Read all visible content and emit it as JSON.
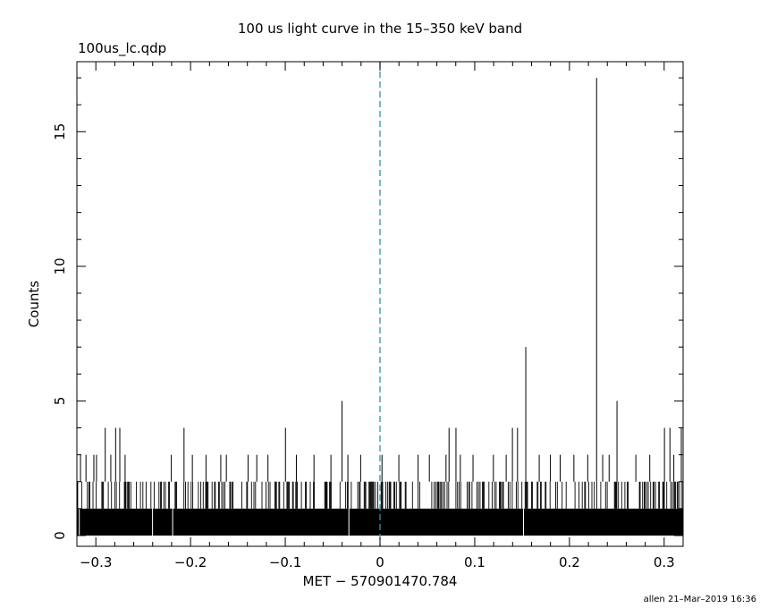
{
  "chart_data": {
    "type": "bar",
    "title": "100 us light curve in the 15–350 keV band",
    "file_label": "100us_lc.qdp",
    "xlabel": "MET − 570901470.784",
    "ylabel": "Counts",
    "footer": "allen 21–Mar–2019 16:36",
    "xlim": [
      -0.32,
      0.32
    ],
    "ylim": [
      -0.4,
      17.6
    ],
    "x_ticks": [
      -0.3,
      -0.2,
      -0.1,
      0,
      0.1,
      0.2,
      0.3
    ],
    "x_tick_labels": [
      "−0.3",
      "−0.2",
      "−0.1",
      "0",
      "0.1",
      "0.2",
      "0.3"
    ],
    "y_ticks": [
      0,
      5,
      10,
      15
    ],
    "y_tick_labels": [
      "0",
      "5",
      "10",
      "15"
    ],
    "bin_width": 0.0001,
    "reference_line": {
      "x": 0,
      "style": "dashed",
      "color": "#1f9bb4"
    },
    "spikes": [
      {
        "x": -0.3162,
        "y": 3
      },
      {
        "x": -0.3104,
        "y": 3
      },
      {
        "x": -0.3021,
        "y": 3
      },
      {
        "x": -0.2993,
        "y": 3
      },
      {
        "x": -0.2901,
        "y": 4
      },
      {
        "x": -0.2842,
        "y": 3
      },
      {
        "x": -0.2791,
        "y": 4
      },
      {
        "x": -0.2747,
        "y": 4
      },
      {
        "x": -0.2691,
        "y": 3
      },
      {
        "x": -0.2203,
        "y": 3
      },
      {
        "x": -0.2069,
        "y": 4
      },
      {
        "x": -0.1981,
        "y": 3
      },
      {
        "x": -0.1837,
        "y": 3
      },
      {
        "x": -0.1681,
        "y": 3
      },
      {
        "x": -0.1622,
        "y": 3
      },
      {
        "x": -0.1393,
        "y": 3
      },
      {
        "x": -0.1301,
        "y": 3
      },
      {
        "x": -0.1183,
        "y": 3
      },
      {
        "x": -0.0998,
        "y": 4
      },
      {
        "x": -0.0883,
        "y": 3
      },
      {
        "x": -0.0697,
        "y": 3
      },
      {
        "x": -0.0518,
        "y": 3
      },
      {
        "x": -0.0401,
        "y": 5
      },
      {
        "x": -0.0339,
        "y": 3
      },
      {
        "x": -0.0204,
        "y": 3
      },
      {
        "x": 0.0021,
        "y": 3
      },
      {
        "x": 0.0199,
        "y": 3
      },
      {
        "x": 0.0402,
        "y": 3
      },
      {
        "x": 0.0521,
        "y": 3
      },
      {
        "x": 0.0697,
        "y": 3
      },
      {
        "x": 0.0729,
        "y": 4
      },
      {
        "x": 0.0802,
        "y": 4
      },
      {
        "x": 0.0848,
        "y": 3
      },
      {
        "x": 0.0982,
        "y": 3
      },
      {
        "x": 0.1197,
        "y": 3
      },
      {
        "x": 0.1332,
        "y": 3
      },
      {
        "x": 0.1398,
        "y": 4
      },
      {
        "x": 0.1452,
        "y": 4
      },
      {
        "x": 0.1539,
        "y": 7
      },
      {
        "x": 0.1681,
        "y": 3
      },
      {
        "x": 0.1799,
        "y": 3
      },
      {
        "x": 0.1902,
        "y": 3
      },
      {
        "x": 0.2047,
        "y": 3
      },
      {
        "x": 0.2193,
        "y": 3
      },
      {
        "x": 0.2287,
        "y": 17
      },
      {
        "x": 0.2351,
        "y": 3
      },
      {
        "x": 0.2419,
        "y": 3
      },
      {
        "x": 0.2502,
        "y": 5
      },
      {
        "x": 0.2701,
        "y": 3
      },
      {
        "x": 0.2848,
        "y": 3
      },
      {
        "x": 0.3003,
        "y": 4
      },
      {
        "x": 0.3061,
        "y": 4
      },
      {
        "x": 0.3102,
        "y": 3
      },
      {
        "x": 0.3181,
        "y": 4
      }
    ]
  }
}
